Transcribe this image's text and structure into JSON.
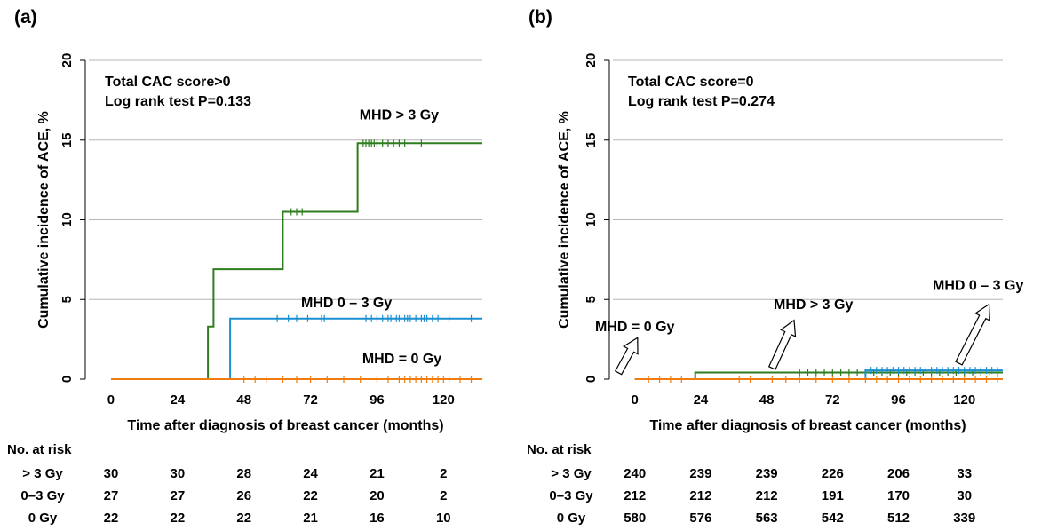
{
  "chart_data": [
    {
      "type": "line",
      "panel_label": "(a)",
      "annotation_lines": [
        "Total CAC score>0",
        "Log rank test P=0.133"
      ],
      "xlabel": "Time after diagnosis of breast cancer (months)",
      "ylabel": "Cumulative incidence of ACE, %",
      "xlim": [
        -8,
        134
      ],
      "ylim": [
        0,
        20
      ],
      "xticks": [
        0,
        24,
        48,
        72,
        96,
        120
      ],
      "yticks": [
        0,
        5,
        10,
        15,
        20
      ],
      "grid": "horizontal",
      "series": [
        {
          "name": "MHD > 3 Gy",
          "color": "#2e7d1e",
          "steps": [
            [
              0,
              0
            ],
            [
              35,
              0
            ],
            [
              35,
              3.3
            ],
            [
              37,
              3.3
            ],
            [
              37,
              6.9
            ],
            [
              62,
              6.9
            ],
            [
              62,
              10.5
            ],
            [
              89,
              10.5
            ],
            [
              89,
              14.8
            ],
            [
              134,
              14.8
            ]
          ],
          "censor_x": [
            65,
            67,
            69,
            91,
            92,
            93,
            94,
            95,
            96,
            98,
            100,
            102,
            104,
            106,
            112
          ],
          "label_at": [
            104,
            16.3
          ]
        },
        {
          "name": "MHD  0 – 3 Gy",
          "color": "#1a8fd1",
          "steps": [
            [
              0,
              0
            ],
            [
              43,
              0
            ],
            [
              43,
              3.8
            ],
            [
              134,
              3.8
            ]
          ],
          "censor_x": [
            60,
            64,
            67,
            71,
            76,
            77,
            92,
            94,
            96,
            98,
            100,
            101,
            103,
            104,
            106,
            107,
            108,
            110,
            112,
            113,
            114,
            116,
            118,
            122,
            130
          ],
          "label_at": [
            85,
            4.5
          ]
        },
        {
          "name": "MHD = 0 Gy",
          "color": "#f07c10",
          "steps": [
            [
              0,
              0
            ],
            [
              134,
              0
            ]
          ],
          "censor_x": [
            48,
            52,
            56,
            62,
            67,
            72,
            78,
            84,
            90,
            96,
            100,
            104,
            106,
            108,
            110,
            112,
            114,
            116,
            118,
            120,
            122,
            126,
            130
          ],
          "label_at": [
            105,
            1.0
          ]
        }
      ],
      "risk_table": {
        "title": "No. at risk",
        "rows": [
          {
            "label": "> 3 Gy",
            "values": [
              "30",
              "30",
              "28",
              "24",
              "21",
              "2"
            ]
          },
          {
            "label": "0–3 Gy",
            "values": [
              "27",
              "27",
              "26",
              "22",
              "20",
              "2"
            ]
          },
          {
            "label": "0 Gy",
            "values": [
              "22",
              "22",
              "22",
              "21",
              "16",
              "10"
            ]
          }
        ]
      }
    },
    {
      "type": "line",
      "panel_label": "(b)",
      "annotation_lines": [
        "Total CAC score=0",
        "Log rank test P=0.274"
      ],
      "xlabel": "Time after diagnosis of breast cancer (months)",
      "ylabel": "Cumulative incidence of ACE, %",
      "xlim": [
        -8,
        134
      ],
      "ylim": [
        0,
        20
      ],
      "xticks": [
        0,
        24,
        48,
        72,
        96,
        120
      ],
      "yticks": [
        0,
        5,
        10,
        15,
        20
      ],
      "grid": "horizontal",
      "series": [
        {
          "name": "MHD > 3 Gy",
          "color": "#2e7d1e",
          "steps": [
            [
              0,
              0
            ],
            [
              22,
              0
            ],
            [
              22,
              0.42
            ],
            [
              134,
              0.42
            ]
          ],
          "censor_x": [
            60,
            63,
            66,
            69,
            72,
            75,
            78,
            81,
            84,
            87,
            90,
            93,
            96,
            99,
            102,
            105,
            108,
            111,
            114,
            117,
            120,
            123,
            126,
            129,
            132
          ],
          "label_at": [
            65,
            4.4
          ],
          "arrow": [
            [
              50,
              0.7
            ],
            [
              58,
              3.7
            ]
          ]
        },
        {
          "name": "MHD 0 – 3 Gy",
          "color": "#1a8fd1",
          "steps": [
            [
              0,
              0
            ],
            [
              84,
              0
            ],
            [
              84,
              0.55
            ],
            [
              134,
              0.55
            ]
          ],
          "censor_x": [
            86,
            88,
            90,
            92,
            94,
            96,
            98,
            100,
            102,
            104,
            106,
            108,
            110,
            112,
            114,
            116,
            118,
            120,
            122,
            124,
            126,
            128,
            130,
            132
          ],
          "label_at": [
            125,
            5.6
          ],
          "arrow": [
            [
              118,
              1.0
            ],
            [
              129,
              4.7
            ]
          ]
        },
        {
          "name": "MHD = 0 Gy",
          "color": "#f07c10",
          "steps": [
            [
              0,
              0
            ],
            [
              134,
              0
            ]
          ],
          "censor_x": [
            5,
            9,
            13,
            17,
            38,
            42,
            50,
            55,
            60,
            66,
            72,
            78,
            84,
            88,
            92,
            96,
            100,
            104,
            108,
            112,
            116,
            120,
            124,
            128,
            132
          ],
          "label_at": [
            0,
            3.0
          ],
          "arrow": [
            [
              -6,
              0.4
            ],
            [
              1,
              2.6
            ]
          ]
        }
      ],
      "risk_table": {
        "title": "No. at risk",
        "rows": [
          {
            "label": "> 3 Gy",
            "values": [
              "240",
              "239",
              "239",
              "226",
              "206",
              "33"
            ]
          },
          {
            "label": "0–3 Gy",
            "values": [
              "212",
              "212",
              "212",
              "191",
              "170",
              "30"
            ]
          },
          {
            "label": "0 Gy",
            "values": [
              "580",
              "576",
              "563",
              "542",
              "512",
              "339"
            ]
          }
        ]
      }
    }
  ]
}
